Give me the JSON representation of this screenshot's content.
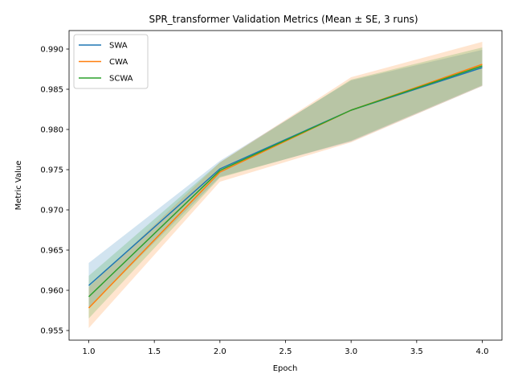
{
  "chart_data": {
    "type": "line",
    "title": "SPR_transformer Validation Metrics (Mean ± SE, 3 runs)",
    "xlabel": "Epoch",
    "ylabel": "Metric Value",
    "x": [
      1.0,
      2.0,
      3.0,
      4.0
    ],
    "xlim": [
      0.85,
      4.15
    ],
    "ylim": [
      0.9538,
      0.9923
    ],
    "x_ticks": [
      "1.0",
      "1.5",
      "2.0",
      "2.5",
      "3.0",
      "3.5",
      "4.0"
    ],
    "y_ticks": [
      "0.955",
      "0.960",
      "0.965",
      "0.970",
      "0.975",
      "0.980",
      "0.985",
      "0.990"
    ],
    "grid": false,
    "legend_position": "top-left",
    "band": "mean ± SE (shaded)",
    "series": [
      {
        "name": "SWA",
        "color": "#1f77b4",
        "values": [
          0.9606,
          0.9751,
          0.9824,
          0.9877
        ],
        "lower": [
          0.9578,
          0.9741,
          0.9785,
          0.9854
        ],
        "upper": [
          0.9634,
          0.9761,
          0.9861,
          0.9899
        ]
      },
      {
        "name": "CWA",
        "color": "#ff7f0e",
        "values": [
          0.9578,
          0.9747,
          0.9824,
          0.9881
        ],
        "lower": [
          0.9553,
          0.9735,
          0.9784,
          0.9854
        ],
        "upper": [
          0.9604,
          0.9759,
          0.9865,
          0.9909
        ]
      },
      {
        "name": "SCWA",
        "color": "#2ca02c",
        "values": [
          0.9592,
          0.9749,
          0.9824,
          0.9879
        ],
        "lower": [
          0.9565,
          0.974,
          0.9786,
          0.9855
        ],
        "upper": [
          0.9618,
          0.9759,
          0.9862,
          0.9902
        ]
      }
    ]
  }
}
